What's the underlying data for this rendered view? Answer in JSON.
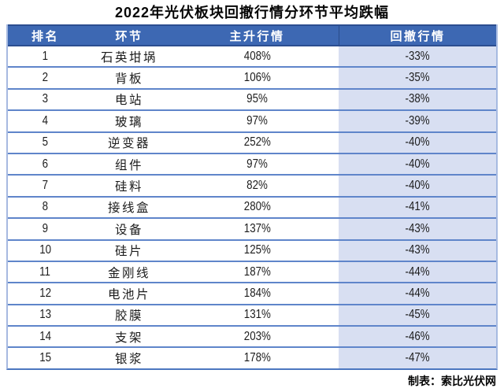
{
  "title": "2022年光伏板块回撤行情分环节平均跌幅",
  "footer": {
    "credit": "制表：索比光伏网"
  },
  "colors": {
    "header_bg": "#3D68B3",
    "header_edge": "#2C4E90",
    "row_separator": "#5F85CA",
    "highlight_column_bg": "#D8DFF2",
    "side_border": "#A7BAE1",
    "bottom_border": "#4C77C0",
    "header_text": "#FFFFFF",
    "body_text": "#1C1C1C"
  },
  "chart_data": {
    "type": "table",
    "title": "2022年光伏板块回撤行情分环节平均跌幅",
    "columns": [
      "排名",
      "环节",
      "主升行情",
      "回撤行情"
    ],
    "rows": [
      [
        "1",
        "石英坩埚",
        "408%",
        "-33%"
      ],
      [
        "2",
        "背板",
        "106%",
        "-35%"
      ],
      [
        "3",
        "电站",
        "95%",
        "-38%"
      ],
      [
        "4",
        "玻璃",
        "97%",
        "-39%"
      ],
      [
        "5",
        "逆变器",
        "252%",
        "-40%"
      ],
      [
        "6",
        "组件",
        "97%",
        "-40%"
      ],
      [
        "7",
        "硅料",
        "82%",
        "-40%"
      ],
      [
        "8",
        "接线盒",
        "280%",
        "-41%"
      ],
      [
        "9",
        "设备",
        "137%",
        "-43%"
      ],
      [
        "10",
        "硅片",
        "125%",
        "-43%"
      ],
      [
        "11",
        "金刚线",
        "187%",
        "-44%"
      ],
      [
        "12",
        "电池片",
        "184%",
        "-44%"
      ],
      [
        "13",
        "胶膜",
        "131%",
        "-45%"
      ],
      [
        "14",
        "支架",
        "203%",
        "-46%"
      ],
      [
        "15",
        "银浆",
        "178%",
        "-47%"
      ]
    ],
    "legend": null,
    "source": "制表：索比光伏网"
  }
}
